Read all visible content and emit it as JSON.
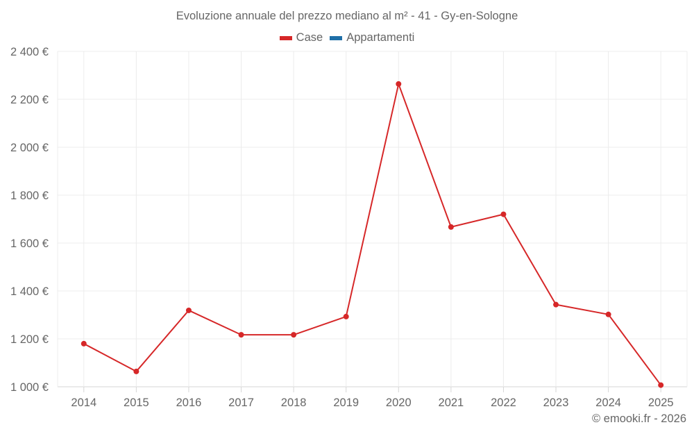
{
  "chart_data": {
    "type": "line",
    "title": "Evoluzione annuale del prezzo mediano al m² - 41 - Gy-en-Sologne",
    "xlabel": "",
    "ylabel": "",
    "categories": [
      "2014",
      "2015",
      "2016",
      "2017",
      "2018",
      "2019",
      "2020",
      "2021",
      "2022",
      "2023",
      "2024",
      "2025"
    ],
    "series": [
      {
        "name": "Case",
        "color": "#d62728",
        "values": [
          1180,
          1064,
          1319,
          1217,
          1217,
          1293,
          2264,
          1667,
          1720,
          1343,
          1302,
          1007
        ]
      },
      {
        "name": "Appartamenti",
        "color": "#1f6fa8",
        "values": []
      }
    ],
    "ylim": [
      1000,
      2400
    ],
    "yticks": [
      1000,
      1200,
      1400,
      1600,
      1800,
      2000,
      2200,
      2400
    ],
    "ytick_labels": [
      "1 000 €",
      "1 200 €",
      "1 400 €",
      "1 600 €",
      "1 800 €",
      "2 000 €",
      "2 200 €",
      "2 400 €"
    ],
    "grid": true,
    "legend_position": "top"
  },
  "title": "Evoluzione annuale del prezzo mediano al m² - 41 - Gy-en-Sologne",
  "legend": [
    {
      "label": "Case",
      "color": "#d62728"
    },
    {
      "label": "Appartamenti",
      "color": "#1f6fa8"
    }
  ],
  "credit": "© emooki.fr - 2026"
}
